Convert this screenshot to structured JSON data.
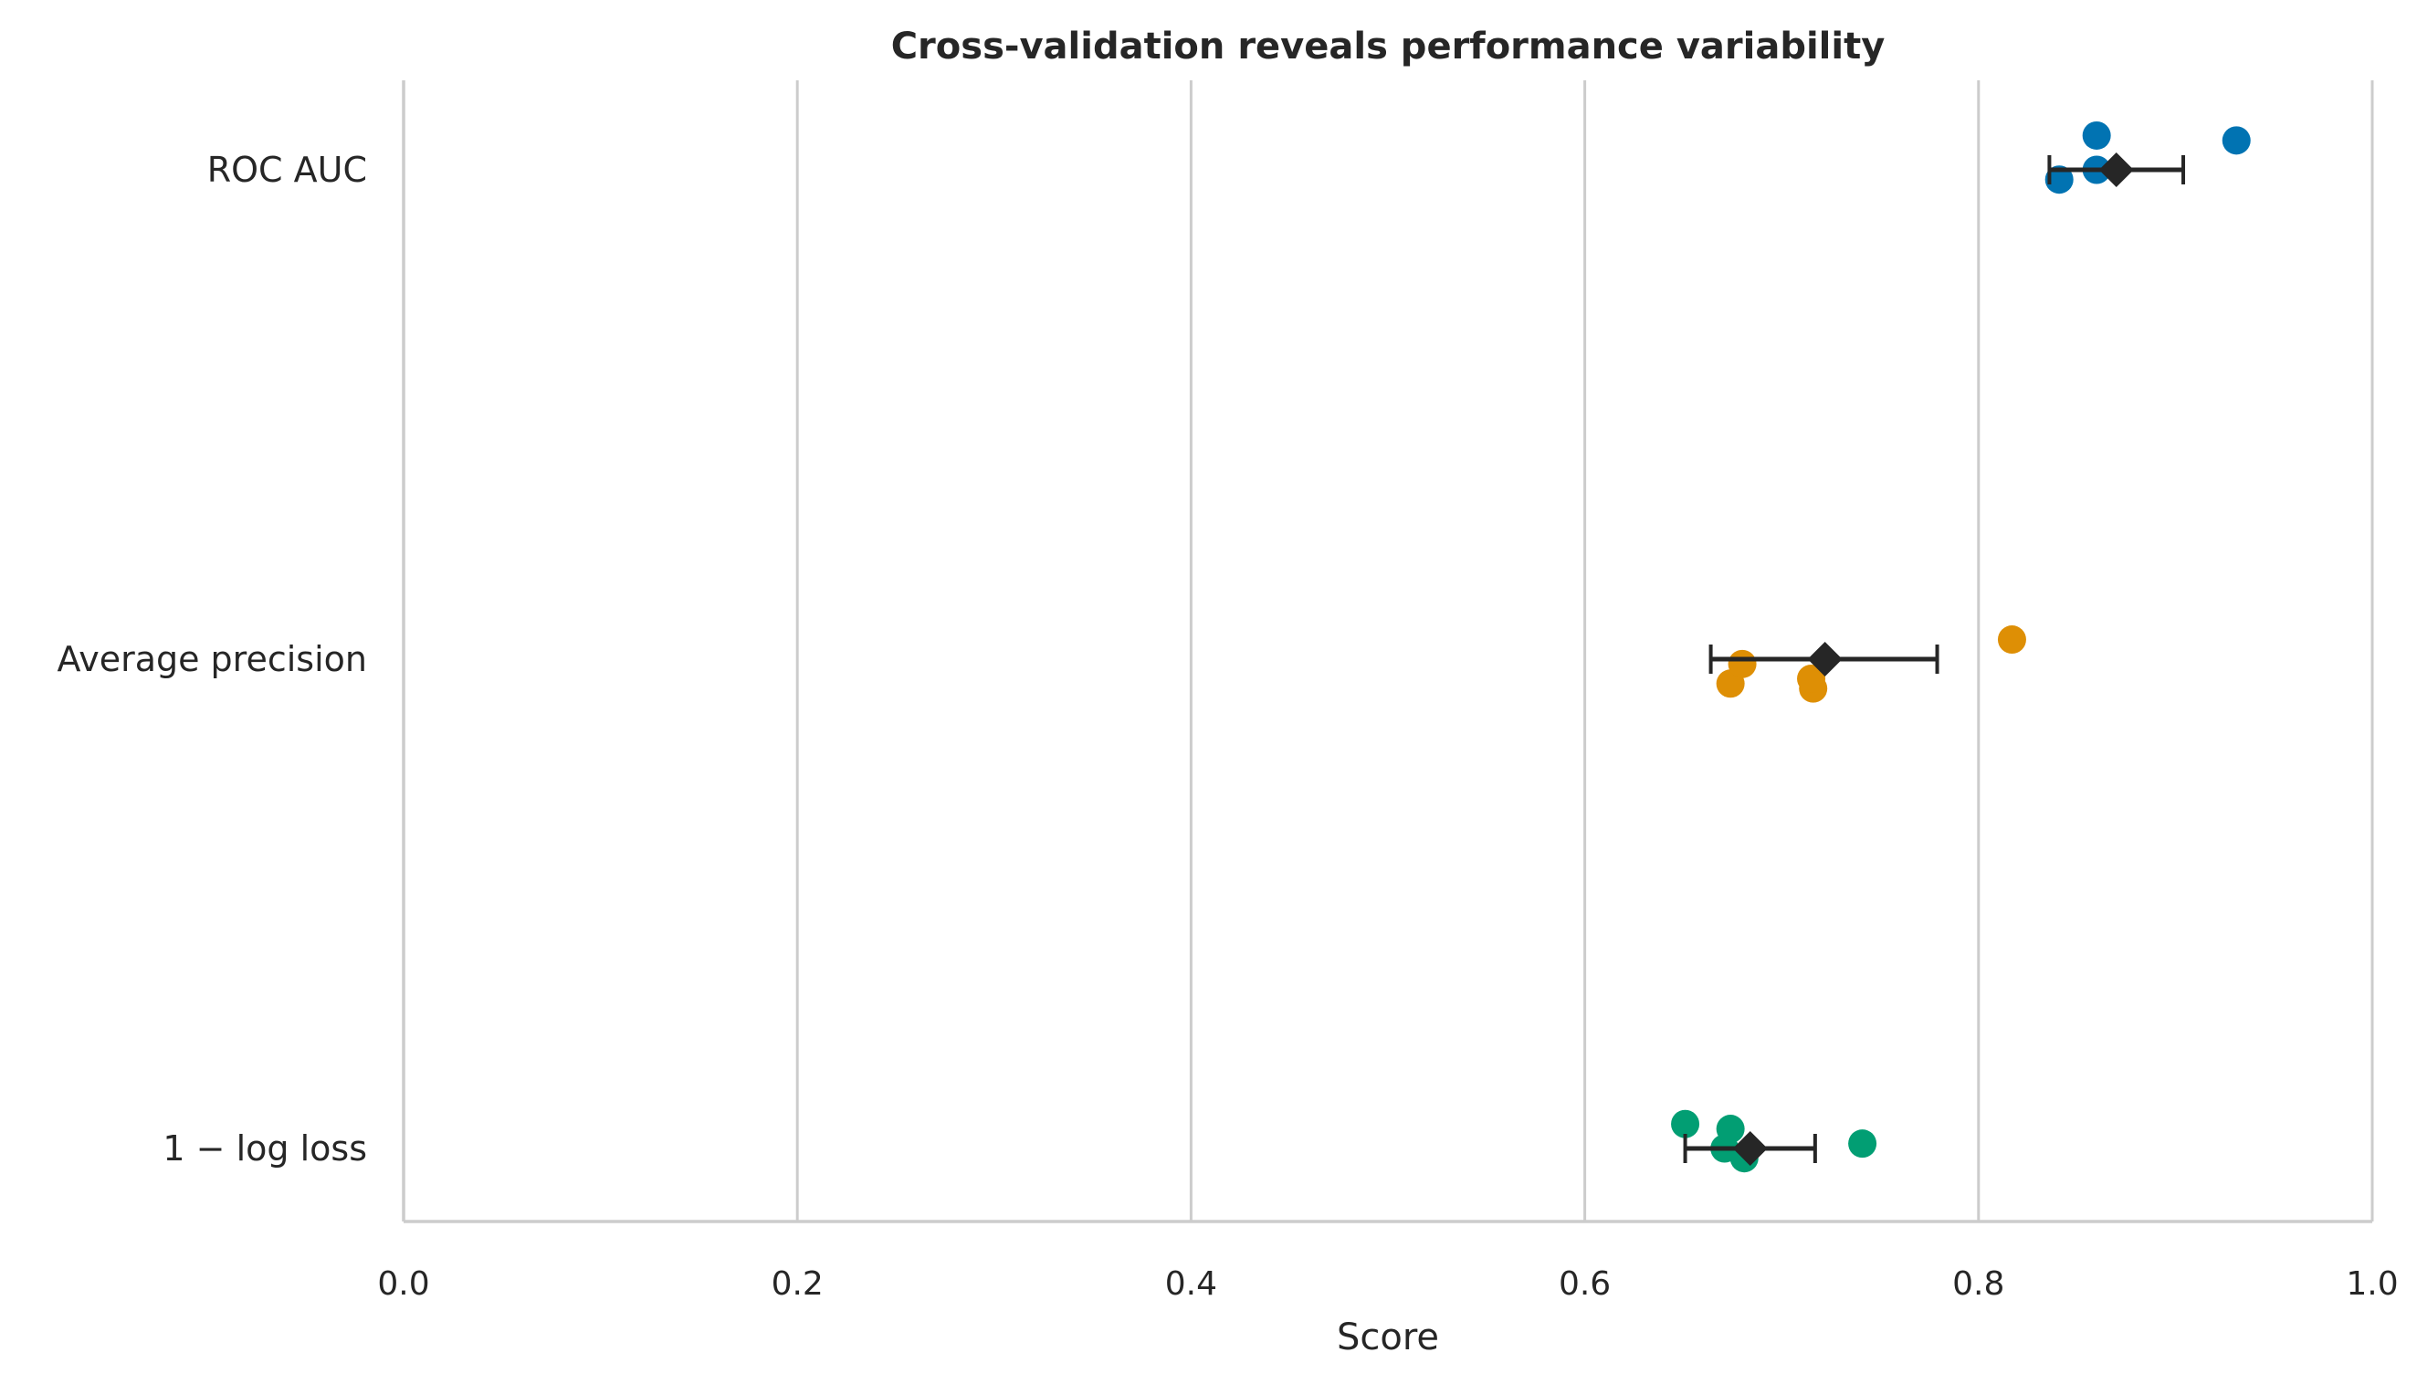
{
  "chart_data": {
    "type": "scatter",
    "title": "Cross-validation reveals performance variability",
    "xlabel": "Score",
    "ylabel": "",
    "xlim": [
      0.0,
      1.0
    ],
    "x_ticks": [
      "0.0",
      "0.2",
      "0.4",
      "0.6",
      "0.8",
      "1.0"
    ],
    "x_tick_values": [
      0.0,
      0.2,
      0.4,
      0.6,
      0.8,
      1.0
    ],
    "grid": "vertical",
    "categories": [
      "ROC AUC",
      "Average precision",
      "1 − log loss"
    ],
    "series": [
      {
        "category": "ROC AUC",
        "color": "#0173b2",
        "points": [
          {
            "x": 0.86,
            "jitter": -0.07
          },
          {
            "x": 0.841,
            "jitter": 0.02
          },
          {
            "x": 0.86,
            "jitter": 0.0
          },
          {
            "x": 0.931,
            "jitter": -0.06
          }
        ],
        "mean": 0.87,
        "error_low": 0.836,
        "error_high": 0.904
      },
      {
        "category": "Average precision",
        "color": "#de8f05",
        "points": [
          {
            "x": 0.716,
            "jitter": 0.06
          },
          {
            "x": 0.715,
            "jitter": 0.04
          },
          {
            "x": 0.674,
            "jitter": 0.05
          },
          {
            "x": 0.68,
            "jitter": 0.01
          },
          {
            "x": 0.817,
            "jitter": -0.04
          }
        ],
        "mean": 0.722,
        "error_low": 0.664,
        "error_high": 0.779
      },
      {
        "category": "1 − log loss",
        "color": "#029e73",
        "points": [
          {
            "x": 0.681,
            "jitter": 0.02
          },
          {
            "x": 0.671,
            "jitter": 0.0
          },
          {
            "x": 0.674,
            "jitter": -0.04
          },
          {
            "x": 0.651,
            "jitter": -0.05
          },
          {
            "x": 0.741,
            "jitter": -0.01
          }
        ],
        "mean": 0.684,
        "error_low": 0.651,
        "error_high": 0.717
      }
    ]
  }
}
